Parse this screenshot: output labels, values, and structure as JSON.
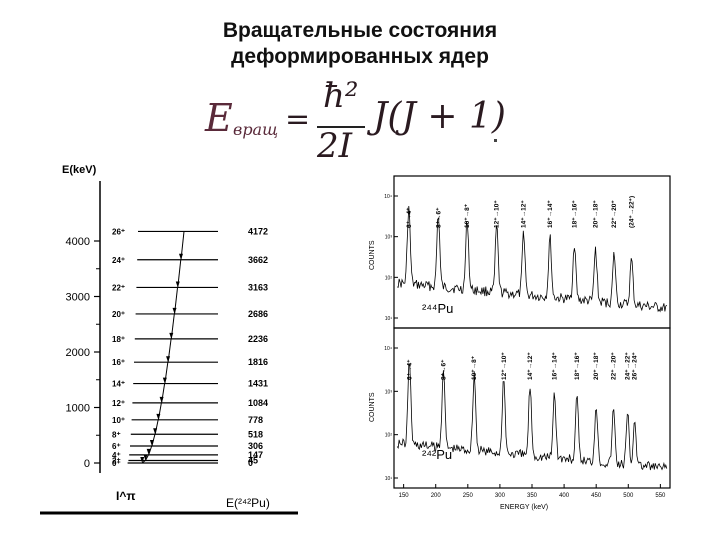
{
  "title": {
    "line1": "Вращательные состояния",
    "line2": "деформированных ядер"
  },
  "formula": {
    "lhs": "E",
    "lhs_subscript": "вращ",
    "equals": "=",
    "numerator": "ħ²",
    "denominator": "2I",
    "rhs": "J(J + 1)"
  },
  "level_scheme": {
    "axis_label": "E(keV)",
    "axis_ticks": [
      "4000",
      "3000",
      "2000",
      "1000",
      "0"
    ],
    "bottom_label": "E(²⁴²Pu)",
    "bottom_left_label": "I^π",
    "levels": [
      {
        "spin": "26⁺",
        "energy": "4172"
      },
      {
        "spin": "24⁺",
        "energy": "3662"
      },
      {
        "spin": "22⁺",
        "energy": "3163"
      },
      {
        "spin": "20⁺",
        "energy": "2686"
      },
      {
        "spin": "18⁺",
        "energy": "2236"
      },
      {
        "spin": "16⁺",
        "energy": "1816"
      },
      {
        "spin": "14⁺",
        "energy": "1431"
      },
      {
        "spin": "12⁺",
        "energy": "1084"
      },
      {
        "spin": "10⁺",
        "energy": "778"
      },
      {
        "spin": "8⁺",
        "energy": "518"
      },
      {
        "spin": "6⁺",
        "energy": "306"
      },
      {
        "spin": "4⁺",
        "energy": "147"
      },
      {
        "spin": "2⁺",
        "energy": "45"
      },
      {
        "spin": "0⁺",
        "energy": "0"
      }
    ]
  },
  "spectra": {
    "y_axis_label": "COUNTS",
    "x_axis_label": "ENERGY (keV)",
    "x_ticks": [
      "150",
      "200",
      "250",
      "300",
      "350",
      "400",
      "450",
      "500",
      "550"
    ],
    "y_ticks_top": [
      "10⁴",
      "10³",
      "10²",
      "10¹"
    ],
    "y_ticks_bottom": [
      "10⁴",
      "10³",
      "10²",
      "10¹"
    ],
    "top_panel": {
      "isotope": "²⁴⁴Pu",
      "peaks": [
        {
          "label": "6⁺→4⁺",
          "energy": 158
        },
        {
          "label": "8⁺→6⁺",
          "energy": 204
        },
        {
          "label": "10⁺→8⁺",
          "energy": 249
        },
        {
          "label": "12⁺→10⁺",
          "energy": 295
        },
        {
          "label": "14⁺→12⁺",
          "energy": 337
        },
        {
          "label": "16⁺→14⁺",
          "energy": 378
        },
        {
          "label": "18⁺→16⁺",
          "energy": 416
        },
        {
          "label": "20⁺→18⁺",
          "energy": 449
        },
        {
          "label": "22⁺→20⁺",
          "energy": 478
        },
        {
          "label": "(24⁺→22⁺)",
          "energy": 505
        }
      ]
    },
    "bottom_panel": {
      "isotope": "²⁴²Pu",
      "peaks": [
        {
          "label": "6⁺→4⁺",
          "energy": 159
        },
        {
          "label": "8⁺→6⁺",
          "energy": 212
        },
        {
          "label": "10⁺→8⁺",
          "energy": 260
        },
        {
          "label": "12⁺→10⁺",
          "energy": 306
        },
        {
          "label": "14⁺→12⁺",
          "energy": 347
        },
        {
          "label": "16⁺→14⁺",
          "energy": 385
        },
        {
          "label": "18⁺→16⁺",
          "energy": 420
        },
        {
          "label": "20⁺→18⁺",
          "energy": 450
        },
        {
          "label": "22⁺→20⁺",
          "energy": 477
        },
        {
          "label": "24⁺→22⁺",
          "energy": 499
        },
        {
          "label": "26⁺→24⁺",
          "energy": 510
        }
      ]
    }
  }
}
